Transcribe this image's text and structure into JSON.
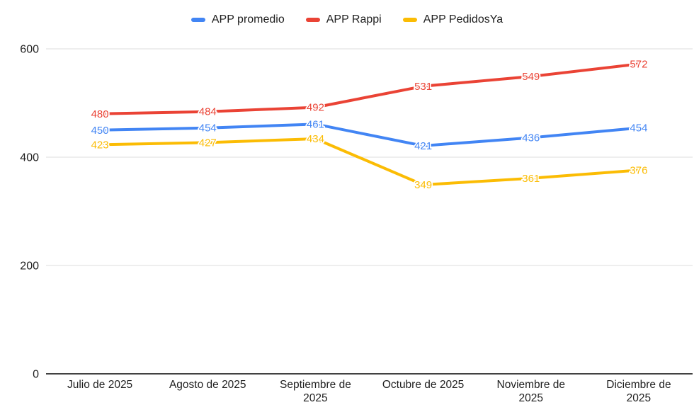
{
  "chart_data": {
    "type": "line",
    "categories": [
      "Julio de 2025",
      "Agosto de 2025",
      "Septiembre de 2025",
      "Octubre de 2025",
      "Noviembre de 2025",
      "Diciembre de 2025"
    ],
    "series": [
      {
        "name": "APP promedio",
        "color": "#4285F4",
        "values": [
          450,
          454,
          461,
          421,
          436,
          454
        ]
      },
      {
        "name": "APP Rappi",
        "color": "#EA4335",
        "values": [
          480,
          484,
          492,
          531,
          549,
          572
        ]
      },
      {
        "name": "APP PedidosYa",
        "color": "#FBBC04",
        "values": [
          423,
          427,
          434,
          349,
          361,
          376
        ]
      }
    ],
    "title": "",
    "xlabel": "",
    "ylabel": "",
    "ylim": [
      0,
      600
    ],
    "yticks": [
      0,
      200,
      400,
      600
    ],
    "grid": true,
    "legend_position": "top",
    "data_labels": true,
    "colors": {
      "background": "#ffffff",
      "axis_line": "#424242",
      "gridline": "#e3e3e3",
      "text": "#1f1f1f"
    }
  }
}
